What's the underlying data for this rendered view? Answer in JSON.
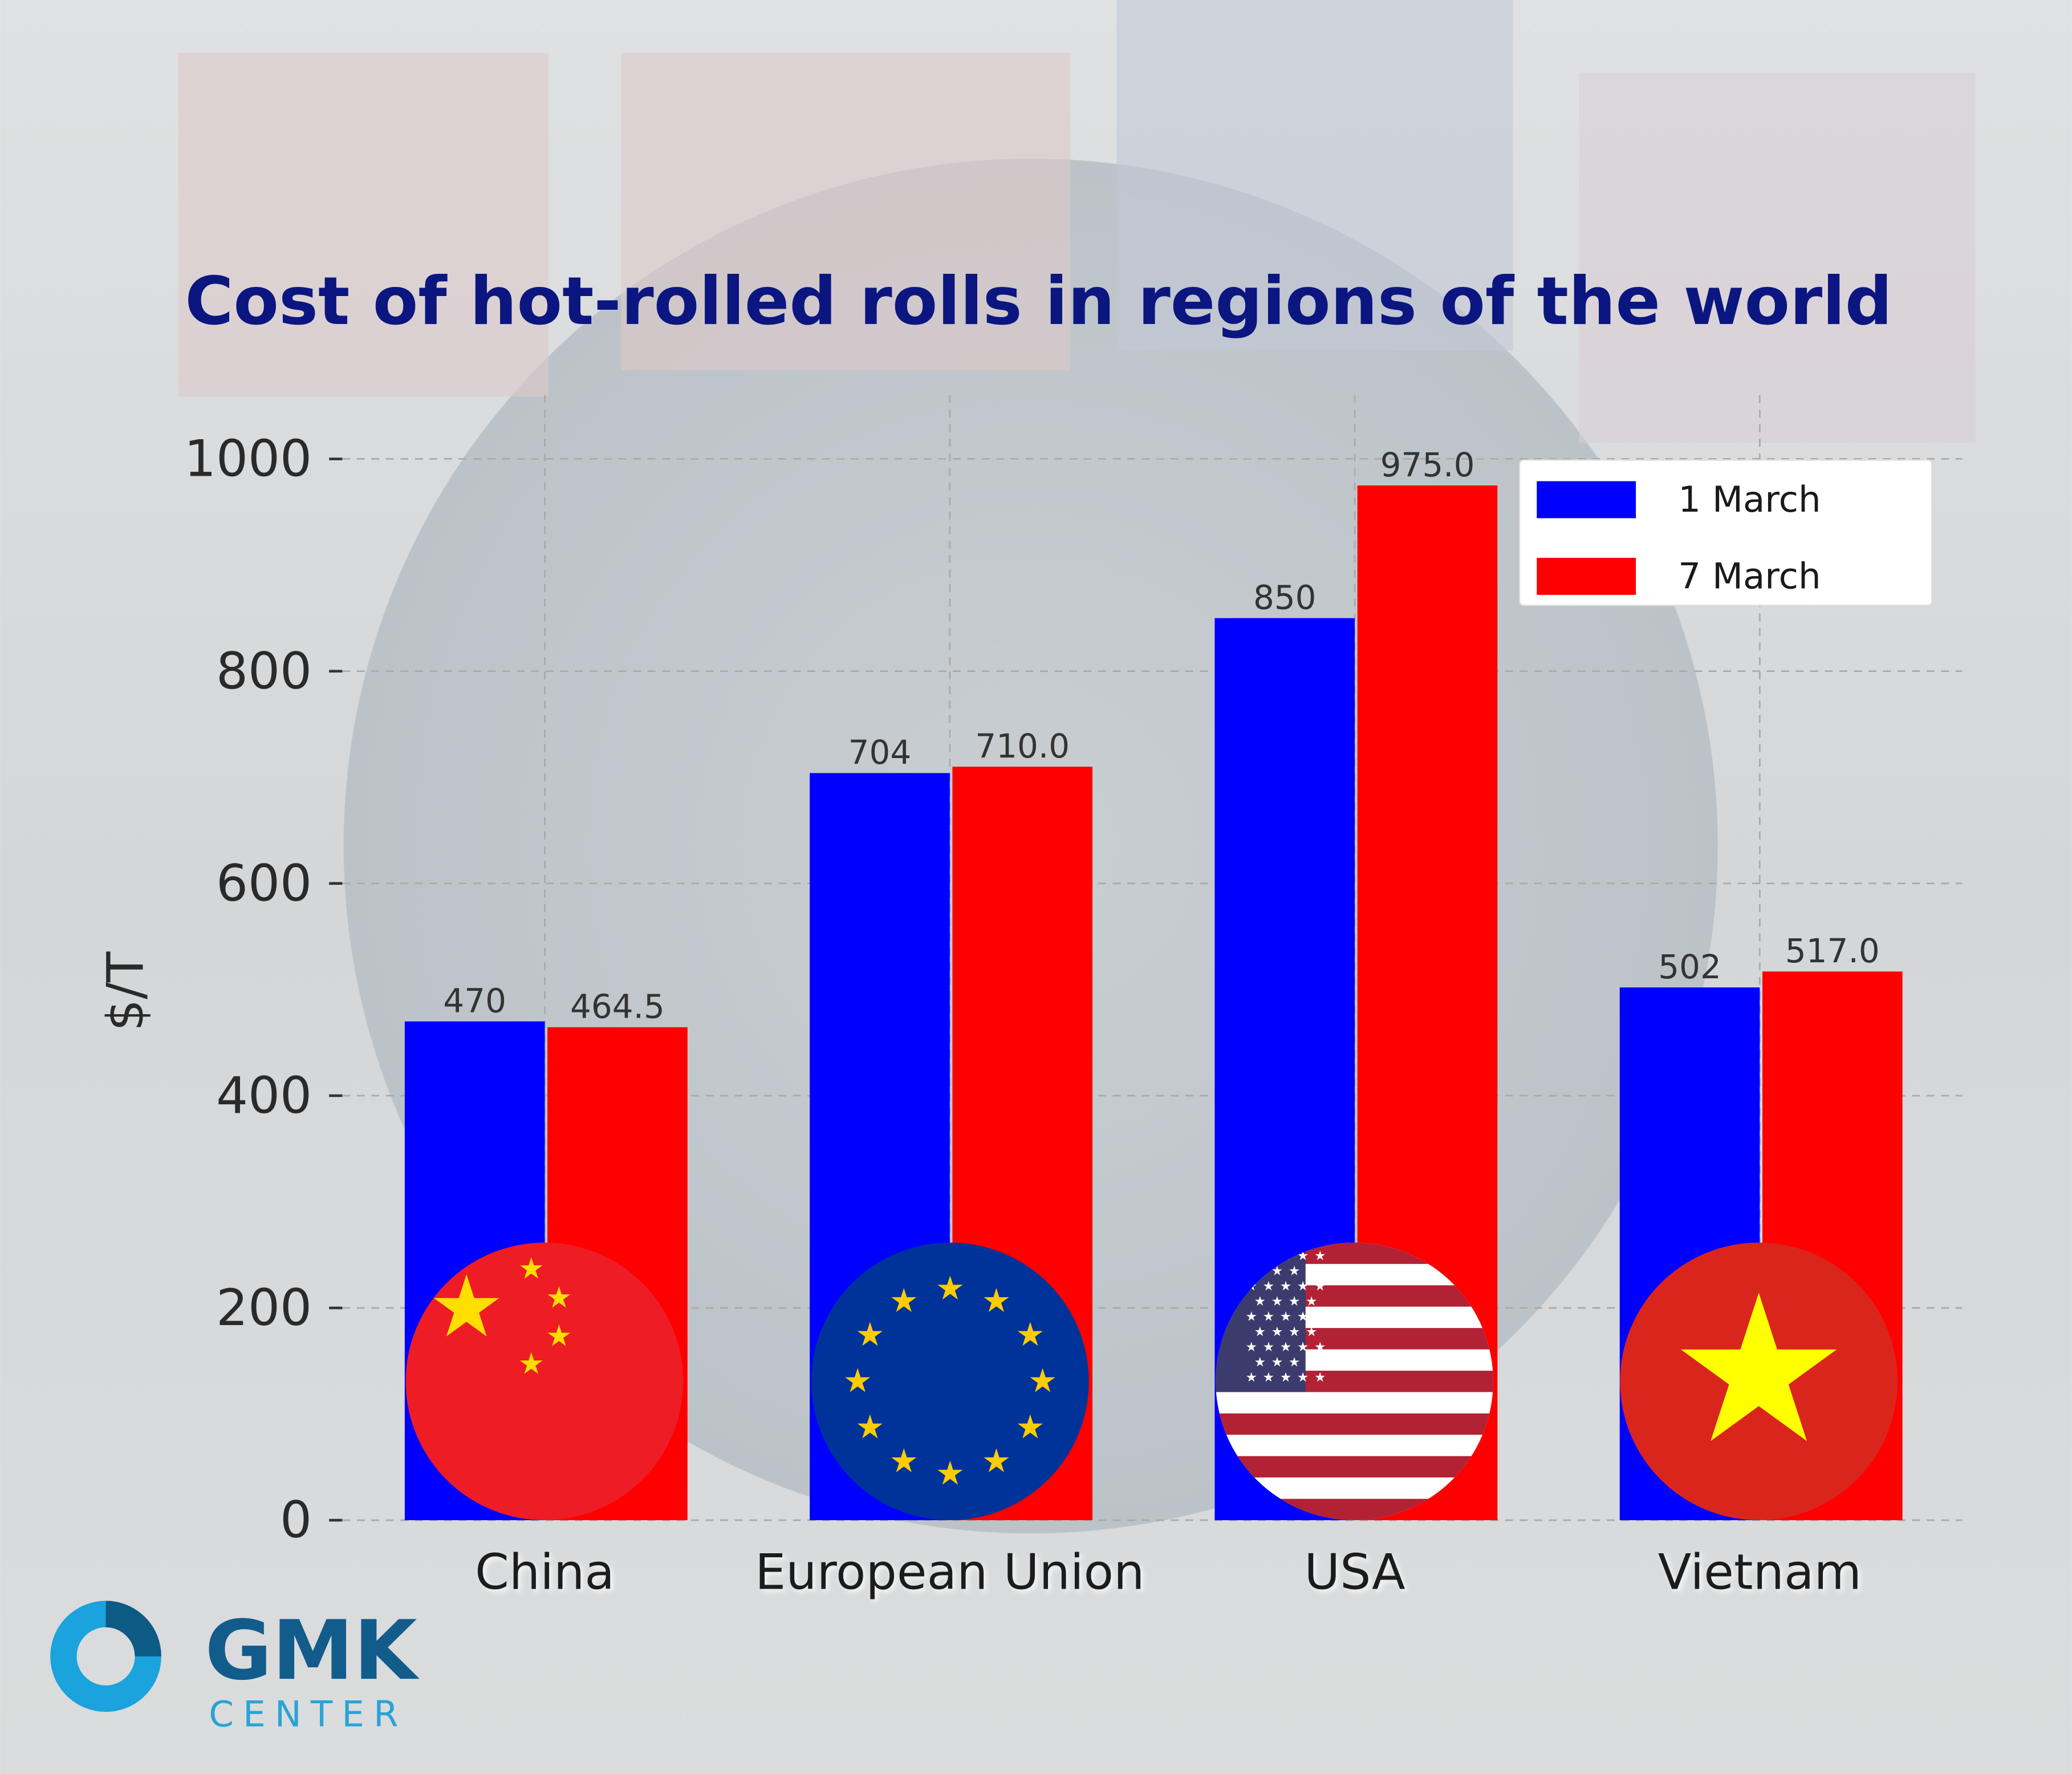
{
  "chart_data": {
    "type": "bar",
    "title": "Cost of hot-rolled rolls in regions of the world",
    "y_label": "$/T",
    "categories": [
      "China",
      "European Union",
      "USA",
      "Vietnam"
    ],
    "series": [
      {
        "name": "1 March",
        "color": "#0000ff",
        "values": [
          470,
          704,
          850,
          502
        ]
      },
      {
        "name": "7 March",
        "color": "#ff0000",
        "values": [
          464.5,
          710,
          975,
          517
        ],
        "value_labels": [
          "464.5",
          "710.0",
          "975.0",
          "517.0"
        ]
      }
    ],
    "ylim": [
      0,
      1060
    ],
    "yticks": [
      0,
      200,
      400,
      600,
      800,
      1000
    ],
    "grid": true,
    "legend": "upper right"
  },
  "logo": {
    "name": "GMK",
    "subtitle": "CENTER"
  }
}
